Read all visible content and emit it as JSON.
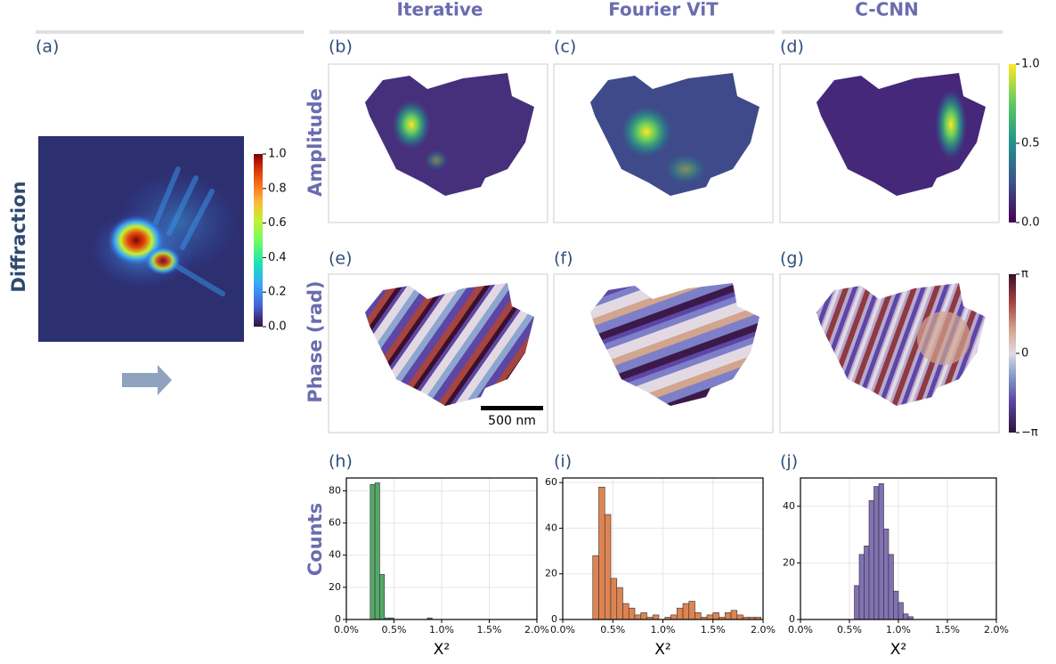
{
  "column_headers": [
    "Iterative",
    "Fourier ViT",
    "C-CNN"
  ],
  "panel_labels": [
    "(a)",
    "(b)",
    "(c)",
    "(d)",
    "(e)",
    "(f)",
    "(g)",
    "(h)",
    "(i)",
    "(j)"
  ],
  "row_labels": {
    "diffraction": "Diffraction",
    "amplitude": "Amplitude",
    "phase": "Phase (rad)",
    "counts": "Counts"
  },
  "scale_bar": "500 nm",
  "colorbars": {
    "diffraction": {
      "lim": [
        0,
        1
      ],
      "ticks": [
        {
          "value": 0,
          "label": "0.0"
        },
        {
          "value": 0.2,
          "label": "0.2"
        },
        {
          "value": 0.4,
          "label": "0.4"
        },
        {
          "value": 0.6,
          "label": "0.6"
        },
        {
          "value": 0.8,
          "label": "0.8"
        },
        {
          "value": 1,
          "label": "1.0"
        }
      ]
    },
    "amplitude": {
      "lim": [
        0,
        1
      ],
      "ticks": [
        {
          "value": 0,
          "label": "0.0"
        },
        {
          "value": 0.5,
          "label": "0.5"
        },
        {
          "value": 1,
          "label": "1.0"
        }
      ]
    },
    "phase": {
      "lim": [
        -3.1416,
        3.1416
      ],
      "ticks": [
        {
          "value": -3.1416,
          "label": "−π"
        },
        0,
        {
          "value": 3.1416,
          "label": "π"
        }
      ]
    }
  },
  "chart_data": [
    {
      "type": "histogram",
      "color": "#55a868",
      "grid": true,
      "xlabel": "X²",
      "bins": [
        0.25,
        0.3,
        0.35,
        0.4,
        0.45,
        0.5,
        0.55,
        0.6,
        0.65,
        0.7,
        0.75,
        0.8,
        0.85,
        0.9
      ],
      "values": [
        84,
        85,
        28,
        1,
        1,
        0,
        0,
        0,
        0,
        0,
        0,
        0,
        1
      ],
      "xlim": [
        0,
        2
      ],
      "xticks": [
        {
          "value": 0,
          "label": "0.0%"
        },
        {
          "value": 0.5,
          "label": "0.5%"
        },
        {
          "value": 1,
          "label": "1.0%"
        },
        {
          "value": 1.5,
          "label": "1.5%"
        },
        {
          "value": 2,
          "label": "2.0%"
        }
      ],
      "ylim": [
        0,
        88
      ],
      "yticks": [
        0,
        20,
        40,
        60,
        80
      ]
    },
    {
      "type": "histogram",
      "color": "#dd8452",
      "grid": true,
      "xlabel": "X²",
      "bins": [
        0.3,
        0.36,
        0.42,
        0.48,
        0.54,
        0.6,
        0.66,
        0.72,
        0.78,
        0.84,
        0.9,
        0.96,
        1.02,
        1.08,
        1.14,
        1.2,
        1.26,
        1.32,
        1.38,
        1.44,
        1.5,
        1.56,
        1.62,
        1.68,
        1.74,
        1.8,
        1.86,
        1.92,
        1.98
      ],
      "values": [
        28,
        58,
        46,
        18,
        14,
        7,
        5,
        2,
        3,
        1,
        2,
        0,
        1,
        2,
        5,
        7,
        8,
        3,
        1,
        2,
        3,
        1,
        3,
        4,
        2,
        1,
        1,
        1
      ],
      "xlim": [
        0,
        2
      ],
      "xticks": [
        {
          "value": 0,
          "label": "0.0%"
        },
        {
          "value": 0.5,
          "label": "0.5%"
        },
        {
          "value": 1,
          "label": "1.0%"
        },
        {
          "value": 1.5,
          "label": "1.5%"
        },
        {
          "value": 2,
          "label": "2.0%"
        }
      ],
      "ylim": [
        0,
        62
      ],
      "yticks": [
        0,
        20,
        40,
        60
      ]
    },
    {
      "type": "histogram",
      "color": "#8172b3",
      "grid": true,
      "xlabel": "X²",
      "bins": [
        0.55,
        0.6,
        0.65,
        0.7,
        0.75,
        0.8,
        0.85,
        0.9,
        0.95,
        1.0,
        1.05,
        1.1,
        1.15
      ],
      "values": [
        12,
        23,
        26,
        42,
        47,
        48,
        32,
        23,
        10,
        6,
        2,
        1
      ],
      "xlim": [
        0,
        2
      ],
      "xticks": [
        {
          "value": 0,
          "label": "0.0%"
        },
        {
          "value": 0.5,
          "label": "0.5%"
        },
        {
          "value": 1,
          "label": "1.0%"
        },
        {
          "value": 1.5,
          "label": "1.5%"
        },
        {
          "value": 2,
          "label": "2.0%"
        }
      ],
      "ylim": [
        0,
        50
      ],
      "yticks": [
        0,
        20,
        40
      ]
    }
  ]
}
